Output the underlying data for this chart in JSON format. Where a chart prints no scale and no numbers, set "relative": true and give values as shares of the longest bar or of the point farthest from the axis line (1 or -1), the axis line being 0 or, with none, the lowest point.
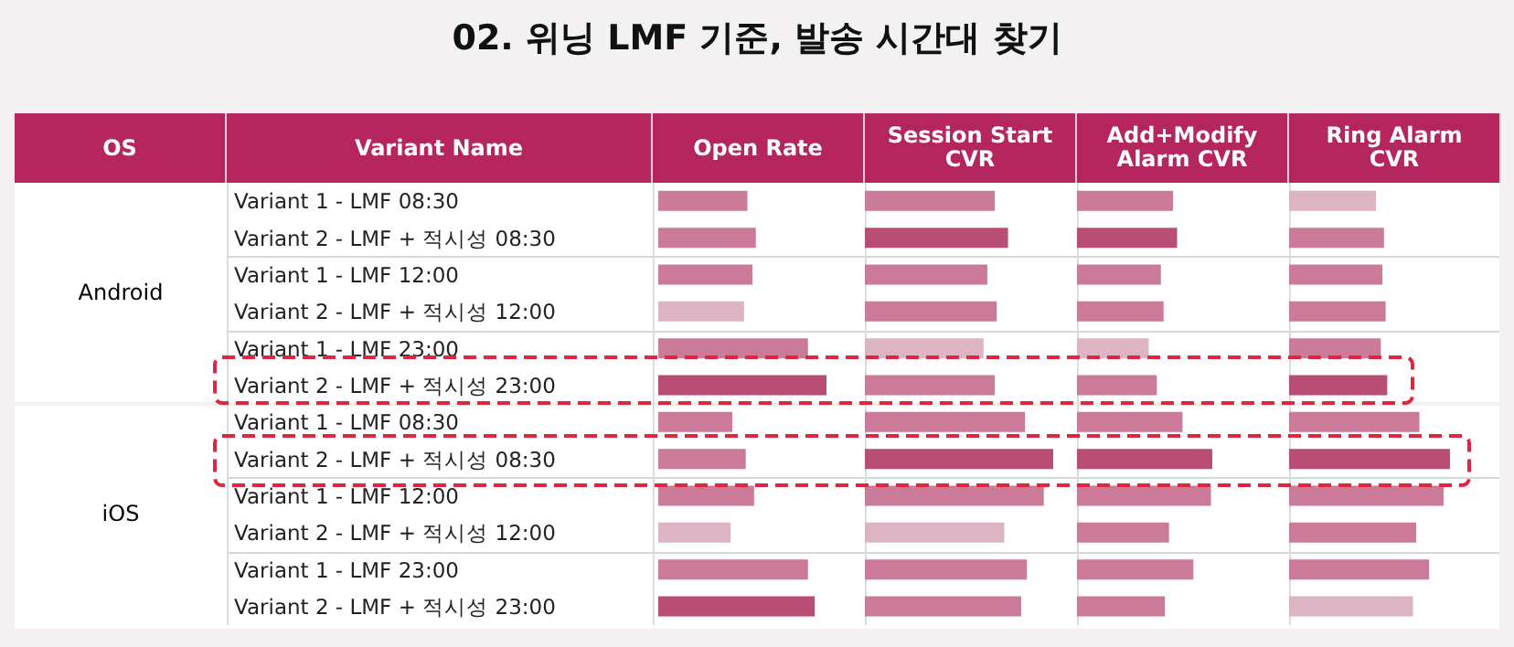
{
  "chart_data": [
    {
      "type": "bar",
      "orientation": "horizontal",
      "relative": true,
      "tick_labels": "y",
      "title": "02. 위닝 LMF 기준, 발송 시간대 찾기",
      "ylabel": "Variant Name",
      "xlabel": "Open Rate",
      "annotations": [
        "OS",
        "Android",
        "iOS"
      ],
      "categories": [
        "Variant 1 - LMF 08:30",
        "Variant 2 - LMF + 적시성 08:30",
        "Variant 1 - LMF 12:00",
        "Variant 2 - LMF + 적시성 12:00",
        "Variant 1 - LMF 23:00",
        "Variant 2 - LMF + 적시성 23:00",
        "Variant 1 - LMF 08:30",
        "Variant 2 - LMF + 적시성 08:30",
        "Variant 1 - LMF 12:00",
        "Variant 2 - LMF + 적시성 12:00",
        "Variant 1 - LMF 23:00",
        "Variant 2 - LMF + 적시성 23:00"
      ],
      "values": [
        0.53,
        0.58,
        0.56,
        0.51,
        0.89,
        1,
        0.44,
        0.52,
        0.57,
        0.43,
        0.89,
        0.93
      ],
      "colors": [
        "#cc7a9a",
        "#cc7a9a",
        "#cc7a9a",
        "#dcb4c4",
        "#cc7a9a",
        "#b84d75",
        "#cc7a9a",
        "#cc7a9a",
        "#cc7a9a",
        "#dcb4c4",
        "#cc7a9a",
        "#b84d75"
      ]
    },
    {
      "type": "bar",
      "orientation": "horizontal",
      "relative": true,
      "tick_labels": false,
      "xlabel": "Session Start CVR",
      "categories": [
        null,
        null,
        null,
        null,
        null,
        null,
        null,
        null,
        null,
        null,
        null,
        null
      ],
      "values": [
        0.69,
        0.76,
        0.65,
        0.7,
        0.63,
        0.69,
        0.85,
        1,
        0.95,
        0.74,
        0.86,
        0.83
      ],
      "colors": [
        "#cc7a9a",
        "#b84d75",
        "#cc7a9a",
        "#cc7a9a",
        "#dcb4c4",
        "#cc7a9a",
        "#cc7a9a",
        "#b84d75",
        "#cc7a9a",
        "#dcb4c4",
        "#cc7a9a",
        "#cc7a9a"
      ]
    },
    {
      "type": "bar",
      "orientation": "horizontal",
      "relative": true,
      "tick_labels": false,
      "xlabel": "Add+Modify Alarm CVR",
      "categories": [
        null,
        null,
        null,
        null,
        null,
        null,
        null,
        null,
        null,
        null,
        null,
        null
      ],
      "values": [
        0.71,
        0.74,
        0.62,
        0.64,
        0.53,
        0.59,
        0.78,
        1,
        0.99,
        0.68,
        0.86,
        0.65
      ],
      "colors": [
        "#cc7a9a",
        "#b84d75",
        "#cc7a9a",
        "#cc7a9a",
        "#dcb4c4",
        "#cc7a9a",
        "#cc7a9a",
        "#b84d75",
        "#cc7a9a",
        "#cc7a9a",
        "#cc7a9a",
        "#cc7a9a"
      ]
    },
    {
      "type": "bar",
      "orientation": "horizontal",
      "relative": true,
      "tick_labels": false,
      "xlabel": "Ring Alarm CVR",
      "categories": [
        null,
        null,
        null,
        null,
        null,
        null,
        null,
        null,
        null,
        null,
        null,
        null
      ],
      "values": [
        0.54,
        0.59,
        0.58,
        0.6,
        0.57,
        0.61,
        0.81,
        1,
        0.96,
        0.79,
        0.87,
        0.77
      ],
      "colors": [
        "#dcb4c4",
        "#cc7a9a",
        "#cc7a9a",
        "#cc7a9a",
        "#cc7a9a",
        "#b84d75",
        "#cc7a9a",
        "#b84d75",
        "#cc7a9a",
        "#cc7a9a",
        "#cc7a9a",
        "#dcb4c4"
      ]
    }
  ]
}
